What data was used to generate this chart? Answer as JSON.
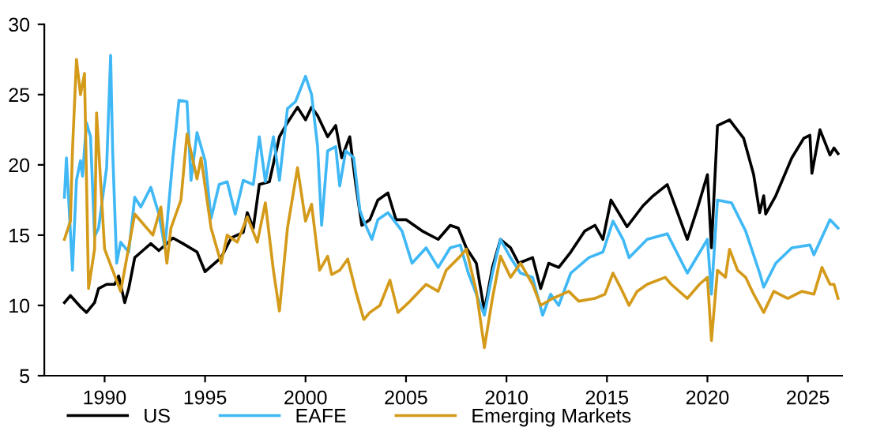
{
  "chart_data": {
    "type": "line",
    "xlim": [
      1987.0,
      2026.7
    ],
    "ylim": [
      5,
      30
    ],
    "xticks": [
      1990,
      1995,
      2000,
      2005,
      2010,
      2015,
      2020,
      2025
    ],
    "yticks": [
      5,
      10,
      15,
      20,
      25,
      30
    ],
    "grid": false,
    "legend": "bottom",
    "marker": "none",
    "line_style": "solid",
    "series": [
      {
        "name": "US",
        "color": "#000000",
        "x": [
          1988.0,
          1988.3,
          1988.8,
          1989.1,
          1989.5,
          1989.7,
          1990.1,
          1990.5,
          1990.7,
          1991.0,
          1991.2,
          1991.5,
          1991.9,
          1992.3,
          1992.7,
          1993.4,
          1993.9,
          1994.6,
          1995.0,
          1995.8,
          1996.3,
          1996.9,
          1997.1,
          1997.4,
          1997.7,
          1998.2,
          1998.7,
          1999.1,
          1999.6,
          2000.0,
          2000.3,
          2000.6,
          2001.1,
          2001.5,
          2001.8,
          2002.2,
          2002.5,
          2002.8,
          2003.2,
          2003.6,
          2004.1,
          2004.5,
          2005.0,
          2005.8,
          2006.6,
          2007.2,
          2007.6,
          2008.0,
          2008.5,
          2008.9,
          2009.3,
          2009.7,
          2010.2,
          2010.6,
          2011.3,
          2011.7,
          2012.1,
          2012.6,
          2013.2,
          2013.9,
          2014.4,
          2014.8,
          2015.2,
          2016.0,
          2016.8,
          2017.3,
          2018.0,
          2019.0,
          2019.5,
          2020.0,
          2020.2,
          2020.5,
          2021.1,
          2021.8,
          2022.3,
          2022.6,
          2022.8,
          2022.9,
          2023.4,
          2024.2,
          2024.8,
          2025.1,
          2025.2,
          2025.6,
          2026.1,
          2026.3,
          2026.5
        ],
        "values": [
          10.2,
          10.7,
          9.9,
          9.5,
          10.2,
          11.2,
          11.5,
          11.5,
          12.1,
          10.2,
          11.2,
          13.4,
          13.9,
          14.4,
          13.9,
          14.8,
          14.4,
          13.8,
          12.4,
          13.4,
          14.8,
          15.2,
          16.6,
          15.5,
          18.6,
          18.8,
          22.0,
          23.0,
          24.1,
          23.2,
          24.1,
          23.5,
          22.0,
          22.8,
          20.5,
          22.0,
          18.6,
          15.7,
          16.1,
          17.5,
          18.0,
          16.1,
          16.1,
          15.3,
          14.7,
          15.7,
          15.5,
          14.1,
          13.0,
          9.6,
          12.7,
          14.7,
          14.1,
          13.0,
          13.4,
          11.2,
          13.0,
          12.7,
          13.8,
          15.3,
          15.7,
          14.7,
          17.5,
          15.6,
          17.1,
          17.8,
          18.6,
          14.7,
          16.9,
          19.3,
          14.1,
          22.8,
          23.2,
          21.9,
          19.3,
          16.6,
          17.8,
          16.5,
          17.8,
          20.5,
          21.9,
          22.1,
          19.4,
          22.5,
          20.7,
          21.2,
          20.8
        ]
      },
      {
        "name": "EAFE",
        "color": "#3fb8f5",
        "x": [
          1988.0,
          1988.1,
          1988.4,
          1988.6,
          1988.8,
          1988.9,
          1989.1,
          1989.3,
          1989.5,
          1989.7,
          1990.1,
          1990.3,
          1990.4,
          1990.6,
          1990.8,
          1991.2,
          1991.5,
          1991.8,
          1992.3,
          1992.7,
          1993.0,
          1993.4,
          1993.7,
          1994.1,
          1994.3,
          1994.6,
          1995.0,
          1995.3,
          1995.7,
          1996.1,
          1996.5,
          1996.9,
          1997.4,
          1997.7,
          1998.0,
          1998.4,
          1998.7,
          1999.1,
          1999.5,
          2000.0,
          2000.3,
          2000.6,
          2000.8,
          2001.1,
          2001.5,
          2001.7,
          2002.0,
          2002.4,
          2002.7,
          2002.9,
          2003.3,
          2003.6,
          2004.1,
          2004.8,
          2005.3,
          2006.0,
          2006.6,
          2007.2,
          2007.7,
          2008.1,
          2008.5,
          2008.9,
          2009.3,
          2009.7,
          2010.2,
          2010.7,
          2011.3,
          2011.8,
          2012.2,
          2012.6,
          2013.2,
          2014.1,
          2014.8,
          2015.3,
          2015.8,
          2016.1,
          2017.0,
          2018.0,
          2019.0,
          2020.0,
          2020.2,
          2020.5,
          2021.2,
          2021.9,
          2022.6,
          2022.8,
          2023.4,
          2024.2,
          2025.1,
          2025.3,
          2026.1,
          2026.5
        ],
        "values": [
          17.7,
          20.5,
          12.5,
          18.9,
          20.3,
          19.2,
          23.0,
          22.0,
          14.9,
          15.5,
          19.8,
          27.8,
          21.0,
          13.0,
          14.5,
          13.8,
          17.7,
          17.0,
          18.4,
          16.5,
          14.1,
          20.5,
          24.6,
          24.5,
          18.9,
          22.3,
          20.3,
          16.2,
          18.6,
          18.8,
          16.5,
          18.9,
          18.6,
          22.0,
          18.8,
          22.0,
          18.9,
          24.0,
          24.5,
          26.3,
          25.0,
          21.3,
          15.7,
          21.0,
          21.3,
          18.5,
          21.0,
          20.5,
          16.8,
          16.0,
          14.7,
          16.1,
          16.6,
          15.3,
          13.0,
          14.1,
          12.7,
          14.1,
          14.3,
          12.3,
          10.8,
          9.3,
          12.3,
          14.7,
          13.4,
          12.3,
          12.0,
          9.3,
          10.8,
          10.0,
          12.3,
          13.4,
          13.8,
          16.0,
          14.7,
          13.4,
          14.7,
          15.1,
          12.3,
          14.7,
          10.8,
          17.5,
          17.3,
          15.3,
          12.3,
          11.3,
          13.0,
          14.1,
          14.3,
          13.6,
          16.1,
          15.5
        ]
      },
      {
        "name": "Emerging Markets",
        "color": "#d49a1a",
        "x": [
          1988.0,
          1988.3,
          1988.4,
          1988.6,
          1988.8,
          1989.0,
          1989.2,
          1989.5,
          1989.6,
          1990.0,
          1990.8,
          1991.5,
          1992.4,
          1992.8,
          1993.1,
          1993.3,
          1993.8,
          1994.1,
          1994.6,
          1994.8,
          1995.3,
          1995.8,
          1996.1,
          1996.6,
          1997.1,
          1997.6,
          1998.0,
          1998.4,
          1998.7,
          1999.1,
          1999.6,
          2000.0,
          2000.3,
          2000.7,
          2001.1,
          2001.3,
          2001.7,
          2002.1,
          2002.5,
          2002.9,
          2003.2,
          2003.7,
          2004.2,
          2004.6,
          2005.2,
          2006.0,
          2006.6,
          2007.0,
          2007.7,
          2008.0,
          2008.5,
          2008.9,
          2009.3,
          2009.7,
          2010.2,
          2010.7,
          2011.3,
          2011.7,
          2012.3,
          2013.1,
          2013.6,
          2014.4,
          2014.9,
          2015.3,
          2015.7,
          2016.1,
          2016.5,
          2017.0,
          2017.9,
          2018.2,
          2019.0,
          2019.6,
          2020.0,
          2020.2,
          2020.5,
          2020.9,
          2021.1,
          2021.5,
          2021.9,
          2022.3,
          2022.8,
          2023.3,
          2024.0,
          2024.7,
          2025.3,
          2025.7,
          2026.1,
          2026.3,
          2026.5
        ],
        "values": [
          14.7,
          16.0,
          21.0,
          27.5,
          25.0,
          26.5,
          11.2,
          14.0,
          23.7,
          14.0,
          11.0,
          16.5,
          15.0,
          17.0,
          13.0,
          15.5,
          17.5,
          22.2,
          19.0,
          20.5,
          15.5,
          13.0,
          15.0,
          14.5,
          16.3,
          14.5,
          17.3,
          12.5,
          9.6,
          15.5,
          19.8,
          16.0,
          17.2,
          12.5,
          13.5,
          12.2,
          12.5,
          13.3,
          11.0,
          9.0,
          9.5,
          10.0,
          11.8,
          9.5,
          10.3,
          11.5,
          11.0,
          12.5,
          13.5,
          14.0,
          11.0,
          7.0,
          10.5,
          13.5,
          12.0,
          13.0,
          11.5,
          10.0,
          10.5,
          11.0,
          10.3,
          10.5,
          10.8,
          12.3,
          11.2,
          10.0,
          11.0,
          11.5,
          12.0,
          11.5,
          10.5,
          11.5,
          12.0,
          7.5,
          12.5,
          12.0,
          14.0,
          12.5,
          12.0,
          10.8,
          9.5,
          11.0,
          10.5,
          11.0,
          10.8,
          12.7,
          11.5,
          11.5,
          10.5
        ]
      }
    ]
  }
}
